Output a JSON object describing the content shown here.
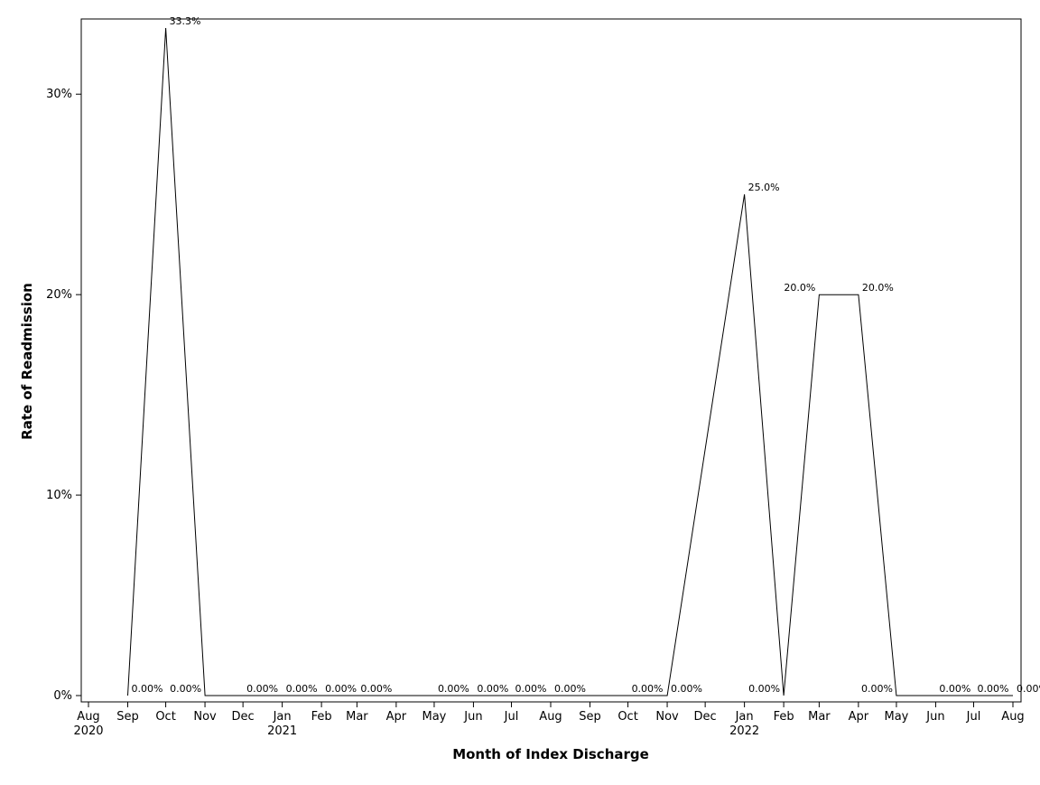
{
  "chart_data": {
    "type": "line",
    "xlabel": "Month of Index Discharge",
    "ylabel": "Rate of Readmission",
    "ylim": [
      0,
      33.3
    ],
    "y_unit": "%",
    "y_ticks": [
      {
        "value": 0,
        "label": "0%"
      },
      {
        "value": 10,
        "label": "10%"
      },
      {
        "value": 20,
        "label": "20%"
      },
      {
        "value": 30,
        "label": "30%"
      }
    ],
    "x_ticks": [
      {
        "date": "2020-08-01",
        "label": "Aug",
        "year": "2020"
      },
      {
        "date": "2020-09-01",
        "label": "Sep",
        "year": ""
      },
      {
        "date": "2020-10-01",
        "label": "Oct",
        "year": ""
      },
      {
        "date": "2020-11-01",
        "label": "Nov",
        "year": ""
      },
      {
        "date": "2020-12-01",
        "label": "Dec",
        "year": ""
      },
      {
        "date": "2021-01-01",
        "label": "Jan",
        "year": "2021"
      },
      {
        "date": "2021-02-01",
        "label": "Feb",
        "year": ""
      },
      {
        "date": "2021-03-01",
        "label": "Mar",
        "year": ""
      },
      {
        "date": "2021-04-01",
        "label": "Apr",
        "year": ""
      },
      {
        "date": "2021-05-01",
        "label": "May",
        "year": ""
      },
      {
        "date": "2021-06-01",
        "label": "Jun",
        "year": ""
      },
      {
        "date": "2021-07-01",
        "label": "Jul",
        "year": ""
      },
      {
        "date": "2021-08-01",
        "label": "Aug",
        "year": ""
      },
      {
        "date": "2021-09-01",
        "label": "Sep",
        "year": ""
      },
      {
        "date": "2021-10-01",
        "label": "Oct",
        "year": ""
      },
      {
        "date": "2021-11-01",
        "label": "Nov",
        "year": ""
      },
      {
        "date": "2021-12-01",
        "label": "Dec",
        "year": ""
      },
      {
        "date": "2022-01-01",
        "label": "Jan",
        "year": "2022"
      },
      {
        "date": "2022-02-01",
        "label": "Feb",
        "year": ""
      },
      {
        "date": "2022-03-01",
        "label": "Mar",
        "year": ""
      },
      {
        "date": "2022-04-01",
        "label": "Apr",
        "year": ""
      },
      {
        "date": "2022-05-01",
        "label": "May",
        "year": ""
      },
      {
        "date": "2022-06-01",
        "label": "Jun",
        "year": ""
      },
      {
        "date": "2022-07-01",
        "label": "Jul",
        "year": ""
      },
      {
        "date": "2022-08-01",
        "label": "Aug",
        "year": ""
      }
    ],
    "series": [
      {
        "color": "#000000",
        "points": [
          {
            "date": "2020-09-01",
            "y": 0,
            "label": "0.00%"
          },
          {
            "date": "2020-10-01",
            "y": 33.3,
            "label": "33.3%"
          },
          {
            "date": "2020-11-01",
            "y": 0,
            "label": "0.00%"
          },
          {
            "date": "2020-12-01",
            "y": 0,
            "label": "0.00%"
          },
          {
            "date": "2021-01-01",
            "y": 0,
            "label": "0.00%"
          },
          {
            "date": "2021-02-01",
            "y": 0,
            "label": "0.00%"
          },
          {
            "date": "2021-03-01",
            "y": 0,
            "label": "0.00%"
          },
          {
            "date": "2021-05-01",
            "y": 0,
            "label": "0.00%"
          },
          {
            "date": "2021-06-01",
            "y": 0,
            "label": "0.00%"
          },
          {
            "date": "2021-07-01",
            "y": 0,
            "label": "0.00%"
          },
          {
            "date": "2021-08-01",
            "y": 0,
            "label": "0.00%"
          },
          {
            "date": "2021-10-01",
            "y": 0,
            "label": "0.00%"
          },
          {
            "date": "2021-11-01",
            "y": 0,
            "label": "0.00%"
          },
          {
            "date": "2022-01-01",
            "y": 25.0,
            "label": "25.0%"
          },
          {
            "date": "2022-02-01",
            "y": 0,
            "label": "0.00%"
          },
          {
            "date": "2022-03-01",
            "y": 20.0,
            "label": "20.0%"
          },
          {
            "date": "2022-04-01",
            "y": 20.0,
            "label": "20.0%"
          },
          {
            "date": "2022-05-01",
            "y": 0,
            "label": "0.00%"
          },
          {
            "date": "2022-06-01",
            "y": 0,
            "label": "0.00%"
          },
          {
            "date": "2022-07-01",
            "y": 0,
            "label": "0.00%"
          },
          {
            "date": "2022-08-01",
            "y": 0,
            "label": "0.00%"
          }
        ]
      }
    ],
    "grid": false,
    "legend": "none"
  }
}
